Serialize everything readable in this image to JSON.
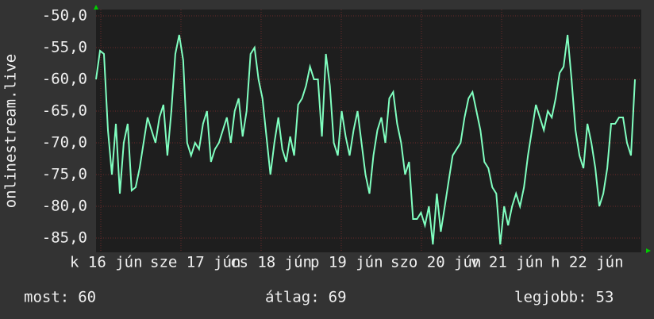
{
  "chart_data": {
    "type": "line",
    "y_label": "onlinestream.live",
    "x_labels": [
      "k 16 jún",
      "sze 17 jún",
      "cs 18 jún",
      "p 19 jún",
      "szo 20 jún",
      "v 21 jún",
      "h 22 jún"
    ],
    "ylim": [
      -87.25,
      -49
    ],
    "yticks": [
      {
        "value": -85,
        "label": "-85,0"
      },
      {
        "value": -80,
        "label": "-80,0"
      },
      {
        "value": -75,
        "label": "-75,0"
      },
      {
        "value": -70,
        "label": "-70,0"
      },
      {
        "value": -65,
        "label": "-65,0"
      },
      {
        "value": -60,
        "label": "-60,0"
      },
      {
        "value": -55,
        "label": "-55,0"
      },
      {
        "value": -50,
        "label": "-50,0"
      }
    ],
    "grid": true,
    "series": [
      {
        "color": "#80ffc0",
        "values": [
          -60,
          -55.5,
          -56,
          -68,
          -75,
          -67,
          -78,
          -70,
          -67,
          -77.5,
          -77,
          -74,
          -70,
          -66,
          -68,
          -70,
          -66,
          -64,
          -72,
          -65,
          -56,
          -53,
          -57,
          -70,
          -72,
          -70,
          -71,
          -67,
          -65,
          -73,
          -71,
          -70,
          -68,
          -66,
          -70,
          -65,
          -63,
          -69,
          -65,
          -56,
          -55,
          -60,
          -63,
          -69,
          -75,
          -70,
          -66,
          -71,
          -73,
          -69,
          -72,
          -64,
          -63,
          -61,
          -58,
          -60,
          -60,
          -69,
          -56,
          -61,
          -70,
          -72,
          -65,
          -69,
          -72,
          -68,
          -65,
          -70,
          -75,
          -78,
          -72,
          -68,
          -66,
          -70,
          -63,
          -62,
          -67,
          -70,
          -75,
          -73,
          -82,
          -82,
          -81,
          -83,
          -80,
          -86,
          -78,
          -84,
          -80,
          -76,
          -72,
          -71,
          -70,
          -66,
          -63,
          -62,
          -65,
          -68,
          -73,
          -74,
          -77,
          -78,
          -86,
          -80,
          -83,
          -80,
          -78,
          -80,
          -77,
          -72,
          -68,
          -64,
          -66,
          -68,
          -65,
          -66,
          -63,
          -59,
          -58,
          -53,
          -60,
          -68,
          -72,
          -74,
          -67,
          -70,
          -74,
          -80,
          -78,
          -74,
          -67,
          -67,
          -66,
          -66,
          -70,
          -72,
          -60
        ]
      }
    ],
    "stats": [
      {
        "label": "most:",
        "value": 60
      },
      {
        "label": "átlag:",
        "value": 69
      },
      {
        "label": "legjobb:",
        "value": 53
      }
    ]
  }
}
